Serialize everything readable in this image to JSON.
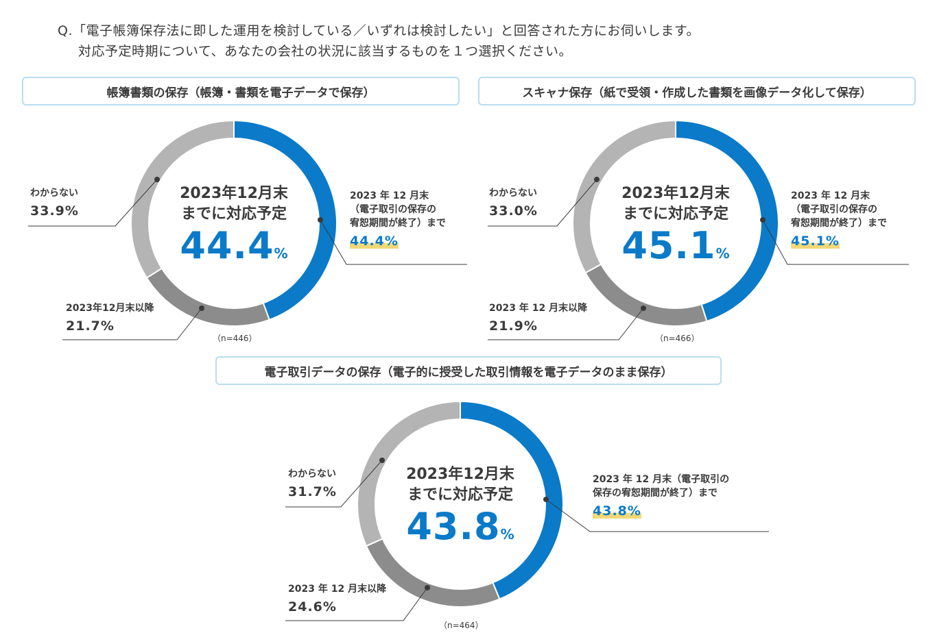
{
  "question": {
    "line1": "Q.「電子帳簿保存法に即した運用を検討している／いずれは検討したい」と回答された方にお伺いします。",
    "line2": "対応予定時期について、あなたの会社の状況に該当するものを１つ選択ください。"
  },
  "colors": {
    "blue": "#0a7ac9",
    "light_gray": "#b4b4b4",
    "dark_gray": "#8c8c8c",
    "highlight": "#f2d878",
    "border": "#b9dcef"
  },
  "chart_data": [
    {
      "type": "pie",
      "title": "帳簿書類の保存（帳簿・書類を電子データで保存）",
      "center_label_1": "2023年12月末",
      "center_label_2": "までに対応予定",
      "center_value": "44.4",
      "center_unit": "%",
      "n": "（n=446）",
      "slices": [
        {
          "label_lines": [
            "2023 年 12 月末",
            "（電子取引の保存の",
            "宥恕期間が終了）まで"
          ],
          "value": 44.4,
          "pct": "44.4%"
        },
        {
          "label_lines": [
            "2023年12月末以降"
          ],
          "value": 21.7,
          "pct": "21.7%"
        },
        {
          "label_lines": [
            "わからない"
          ],
          "value": 33.9,
          "pct": "33.9%"
        }
      ]
    },
    {
      "type": "pie",
      "title": "スキャナ保存（紙で受領・作成した書類を画像データ化して保存）",
      "center_label_1": "2023年12月末",
      "center_label_2": "までに対応予定",
      "center_value": "45.1",
      "center_unit": "%",
      "n": "（n=466）",
      "slices": [
        {
          "label_lines": [
            "2023 年 12 月末",
            "（電子取引の保存の",
            "宥恕期間が終了）まで"
          ],
          "value": 45.1,
          "pct": "45.1%"
        },
        {
          "label_lines": [
            "2023 年 12 月末以降"
          ],
          "value": 21.9,
          "pct": "21.9%"
        },
        {
          "label_lines": [
            "わからない"
          ],
          "value": 33.0,
          "pct": "33.0%"
        }
      ]
    },
    {
      "type": "pie",
      "title": "電子取引データの保存（電子的に授受した取引情報を電子データのまま保存）",
      "center_label_1": "2023年12月末",
      "center_label_2": "までに対応予定",
      "center_value": "43.8",
      "center_unit": "%",
      "n": "（n=464）",
      "slices": [
        {
          "label_lines": [
            "2023 年 12 月末（電子取引の",
            "保存の宥恕期間が終了）まで"
          ],
          "value": 43.8,
          "pct": "43.8%"
        },
        {
          "label_lines": [
            "2023 年 12 月末以降"
          ],
          "value": 24.6,
          "pct": "24.6%"
        },
        {
          "label_lines": [
            "わからない"
          ],
          "value": 31.7,
          "pct": "31.7%"
        }
      ]
    }
  ]
}
